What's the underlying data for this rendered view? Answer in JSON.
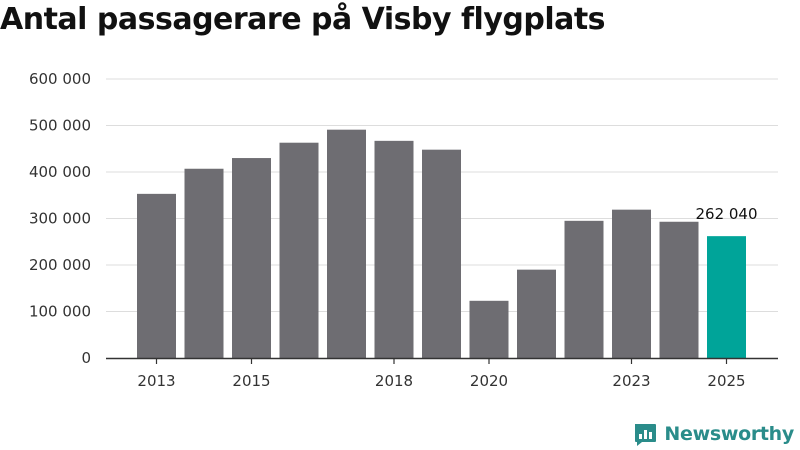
{
  "title": "Antal passagerare på Visby flygplats",
  "brand": {
    "name": "Newsworthy",
    "icon": "newsworthy-logo-icon"
  },
  "colors": {
    "bar": "#6e6d72",
    "highlight": "#00a499",
    "brand": "#2a8c8a",
    "grid": "#dddddd",
    "axis": "#333333"
  },
  "chart_data": {
    "type": "bar",
    "categories": [
      "2013",
      "2014",
      "2015",
      "2016",
      "2017",
      "2018",
      "2019",
      "2020",
      "2021",
      "2022",
      "2023",
      "2024",
      "2025"
    ],
    "values": [
      353000,
      407000,
      430000,
      463000,
      491000,
      467000,
      448000,
      123000,
      190000,
      295000,
      319000,
      293000,
      262040
    ],
    "highlight_index": 12,
    "x_tick_labels": [
      "2013",
      "2015",
      "2018",
      "2020",
      "2023",
      "2025"
    ],
    "y_ticks": [
      0,
      100000,
      200000,
      300000,
      400000,
      500000,
      600000
    ],
    "y_tick_labels": [
      "0",
      "100 000",
      "200 000",
      "300 000",
      "400 000",
      "500 000",
      "600 000"
    ],
    "ylim": [
      0,
      600000
    ],
    "annotations": [
      {
        "index": 12,
        "text": "262 040"
      }
    ],
    "grid": true,
    "legend": "none"
  }
}
